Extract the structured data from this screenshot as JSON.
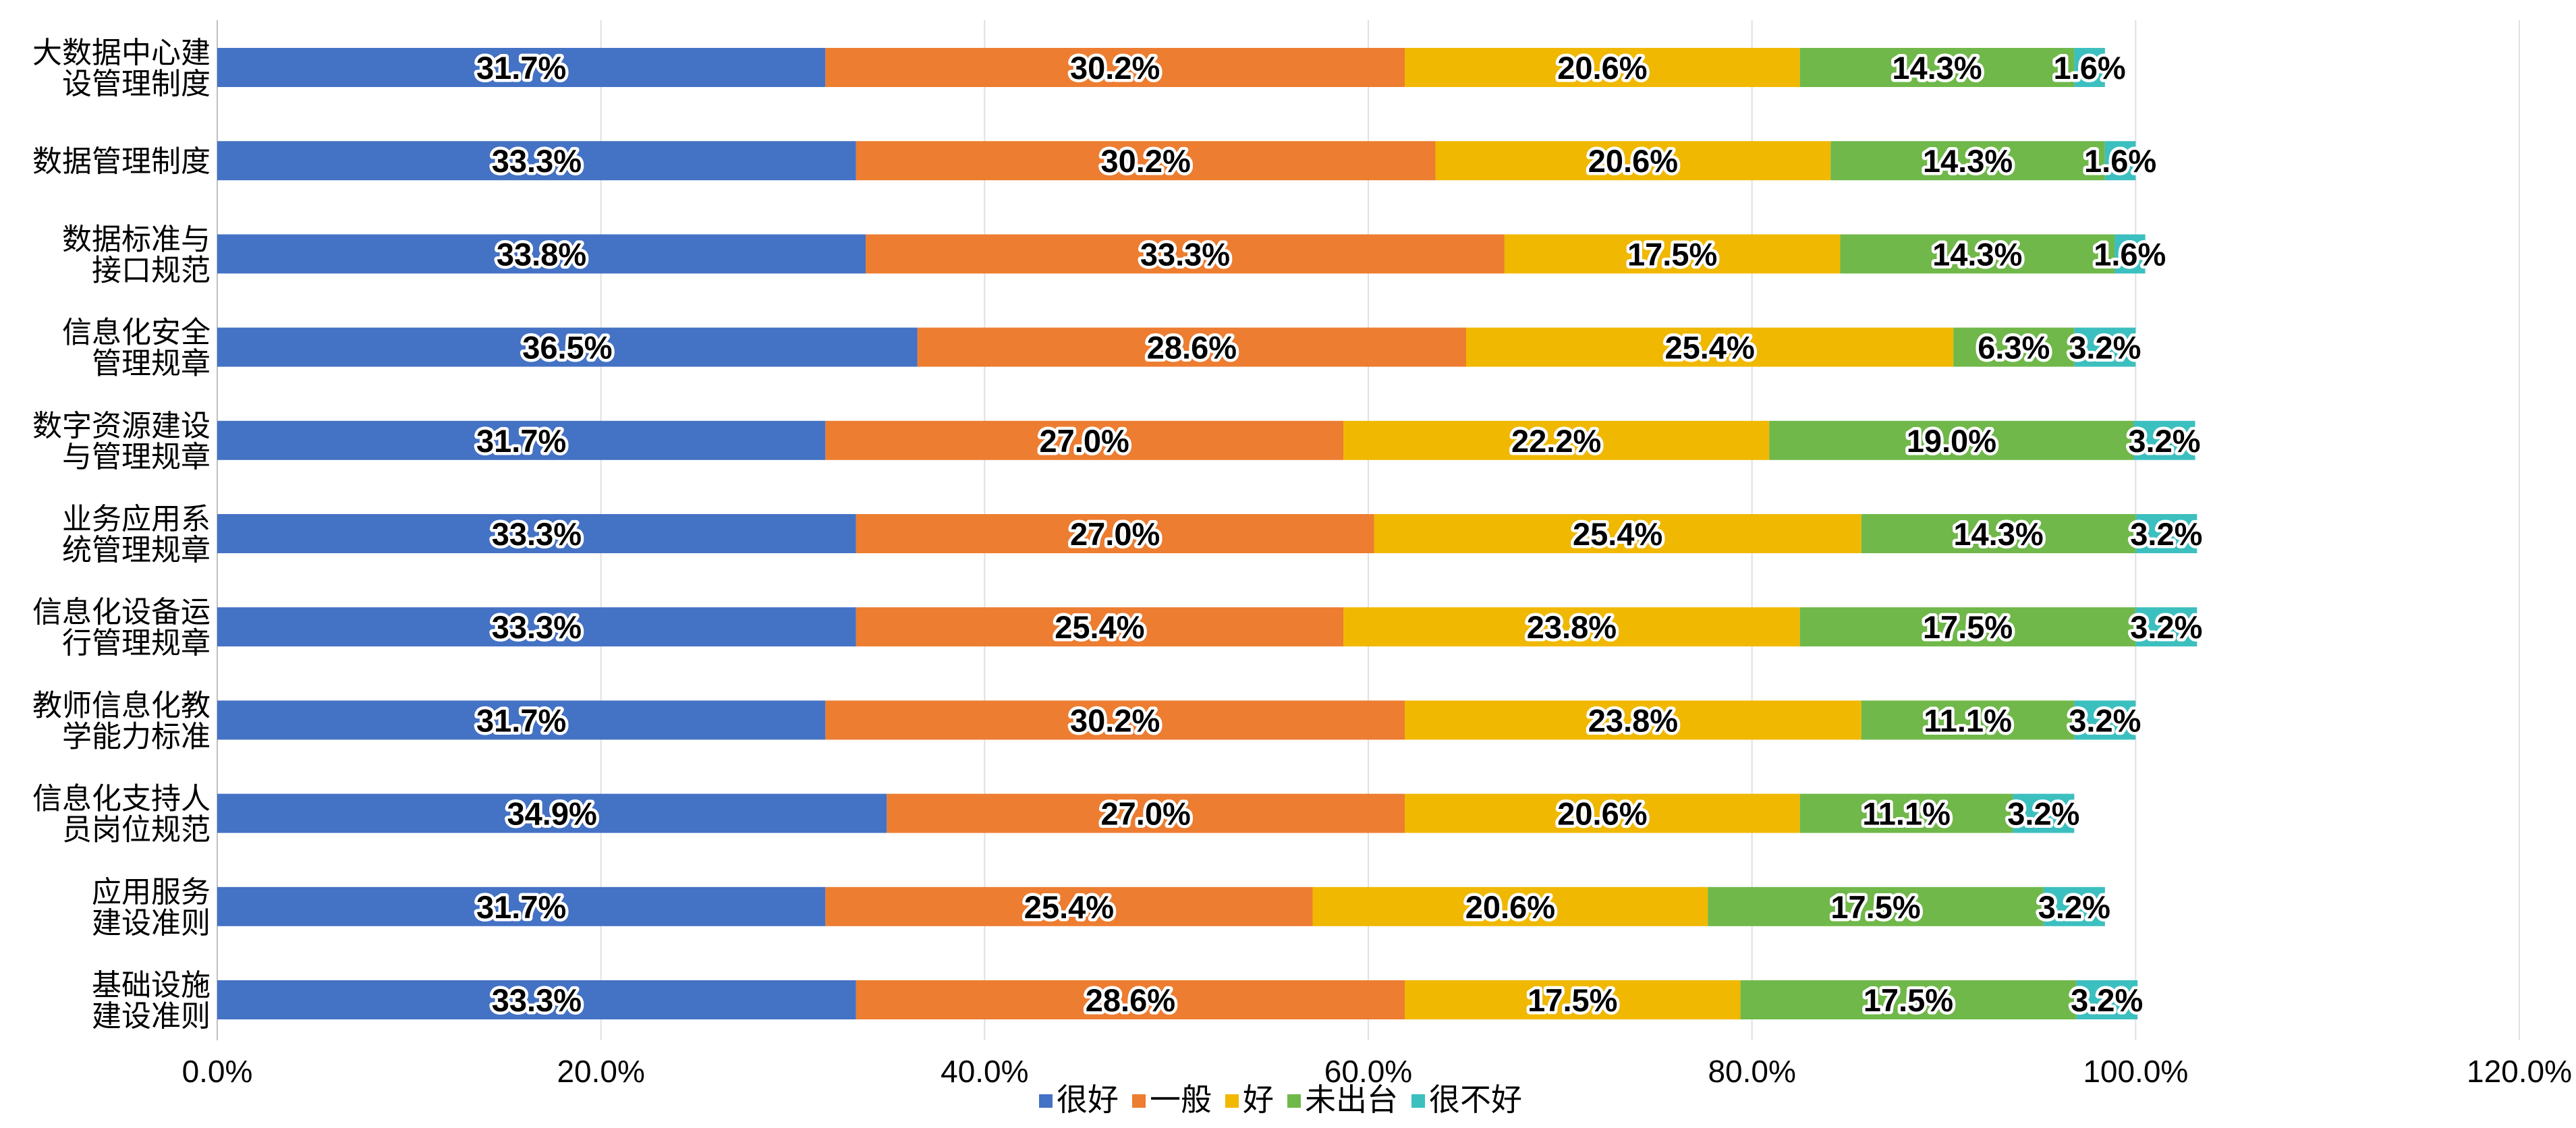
{
  "chart_data": {
    "type": "bar",
    "orientation": "horizontal",
    "stacked": true,
    "categories": [
      [
        "大数据中心建",
        "设管理制度"
      ],
      [
        "数据管理制度"
      ],
      [
        "数据标准与",
        "接口规范"
      ],
      [
        "信息化安全",
        "管理规章"
      ],
      [
        "数字资源建设",
        "与管理规章"
      ],
      [
        "业务应用系",
        "统管理规章"
      ],
      [
        "信息化设备运",
        "行管理规章"
      ],
      [
        "教师信息化教",
        "学能力标准"
      ],
      [
        "信息化支持人",
        "员岗位规范"
      ],
      [
        "应用服务",
        "建设准则"
      ],
      [
        "基础设施",
        "建设准则"
      ]
    ],
    "series": [
      {
        "name": "很好",
        "color": "#4472C4",
        "values": [
          31.7,
          33.3,
          33.8,
          36.5,
          31.7,
          33.3,
          33.3,
          31.7,
          34.9,
          31.7,
          33.3
        ]
      },
      {
        "name": "一般",
        "color": "#ED7D31",
        "values": [
          30.2,
          30.2,
          33.3,
          28.6,
          27.0,
          27.0,
          25.4,
          30.2,
          27.0,
          25.4,
          28.6
        ]
      },
      {
        "name": "好",
        "color": "#F0B800",
        "values": [
          20.6,
          20.6,
          17.5,
          25.4,
          22.2,
          25.4,
          23.8,
          23.8,
          20.6,
          20.6,
          17.5
        ]
      },
      {
        "name": "未出台",
        "color": "#70B84A",
        "values": [
          14.3,
          14.3,
          14.3,
          6.3,
          19.0,
          14.3,
          17.5,
          11.1,
          11.1,
          17.5,
          17.5
        ]
      },
      {
        "name": "很不好",
        "color": "#3CBFBF",
        "values": [
          1.6,
          1.6,
          1.6,
          3.2,
          3.2,
          3.2,
          3.2,
          3.2,
          3.2,
          3.2,
          3.2
        ]
      }
    ],
    "value_suffix": "%",
    "xlim": [
      0,
      120
    ],
    "xticks": [
      0,
      20,
      40,
      60,
      80,
      100,
      120
    ],
    "xtick_labels": [
      "0.0%",
      "20.0%",
      "40.0%",
      "60.0%",
      "80.0%",
      "100.0%",
      "120.0%"
    ],
    "title": "",
    "xlabel": "",
    "ylabel": "",
    "grid": "vertical",
    "legend_position": "bottom"
  }
}
